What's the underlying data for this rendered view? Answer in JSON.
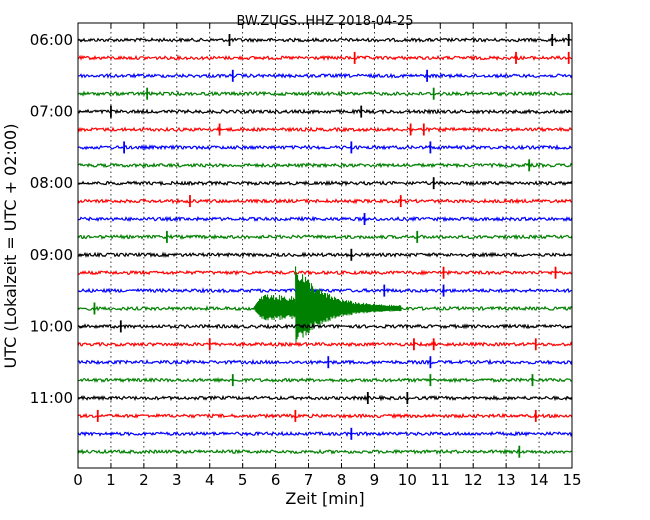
{
  "chart_data": {
    "type": "line",
    "title": "BW.ZUGS..HHZ 2018-04-25",
    "xlabel": "Zeit  [min]",
    "ylabel": "UTC (Lokalzeit = UTC + 02:00)",
    "xlim": [
      0,
      15
    ],
    "x_ticks": [
      "0",
      "1",
      "2",
      "3",
      "4",
      "5",
      "6",
      "7",
      "8",
      "9",
      "10",
      "11",
      "12",
      "13",
      "14",
      "15"
    ],
    "y_ticks": [
      "06:00",
      "07:00",
      "08:00",
      "09:00",
      "10:00",
      "11:00"
    ],
    "grid": "vertical dotted",
    "trace_interval_min": 15,
    "trace_colors": [
      "#000000",
      "#ff0000",
      "#0000ff",
      "#008000"
    ],
    "traces": [
      {
        "start": "06:00",
        "spikes": [
          4.6,
          14.4,
          14.9
        ]
      },
      {
        "start": "06:15",
        "spikes": [
          8.4,
          13.3,
          14.9
        ]
      },
      {
        "start": "06:30",
        "spikes": [
          4.7,
          10.6
        ]
      },
      {
        "start": "06:45",
        "spikes": [
          2.1,
          10.8
        ]
      },
      {
        "start": "07:00",
        "spikes": [
          1.0,
          8.6
        ]
      },
      {
        "start": "07:15",
        "spikes": [
          4.3,
          10.1,
          10.5
        ]
      },
      {
        "start": "07:30",
        "spikes": [
          1.4,
          8.3,
          10.7
        ]
      },
      {
        "start": "07:45",
        "spikes": [
          13.7
        ]
      },
      {
        "start": "08:00",
        "spikes": [
          10.8
        ]
      },
      {
        "start": "08:15",
        "spikes": [
          3.4,
          9.8
        ]
      },
      {
        "start": "08:30",
        "spikes": [
          8.7
        ]
      },
      {
        "start": "08:45",
        "spikes": [
          2.7,
          10.3
        ]
      },
      {
        "start": "09:00",
        "spikes": [
          8.3
        ]
      },
      {
        "start": "09:15",
        "spikes": [
          11.1,
          14.5
        ]
      },
      {
        "start": "09:30",
        "spikes": [
          9.3,
          11.1
        ]
      },
      {
        "start": "09:45",
        "spikes": [
          0.5
        ],
        "event": {
          "onset": 5.3,
          "s_arrival": 6.6,
          "end": 9.8,
          "peak": 2.6
        }
      },
      {
        "start": "10:00",
        "spikes": [
          1.3
        ]
      },
      {
        "start": "10:15",
        "spikes": [
          4.0,
          10.2,
          10.8,
          13.9
        ]
      },
      {
        "start": "10:30",
        "spikes": [
          7.6,
          10.7
        ]
      },
      {
        "start": "10:45",
        "spikes": [
          4.7,
          10.7,
          13.8
        ]
      },
      {
        "start": "11:00",
        "spikes": [
          8.8,
          10.0
        ]
      },
      {
        "start": "11:15",
        "spikes": [
          0.6,
          6.6,
          13.9
        ]
      },
      {
        "start": "11:30",
        "spikes": [
          8.3
        ]
      },
      {
        "start": "11:45",
        "spikes": [
          13.4
        ]
      }
    ]
  }
}
